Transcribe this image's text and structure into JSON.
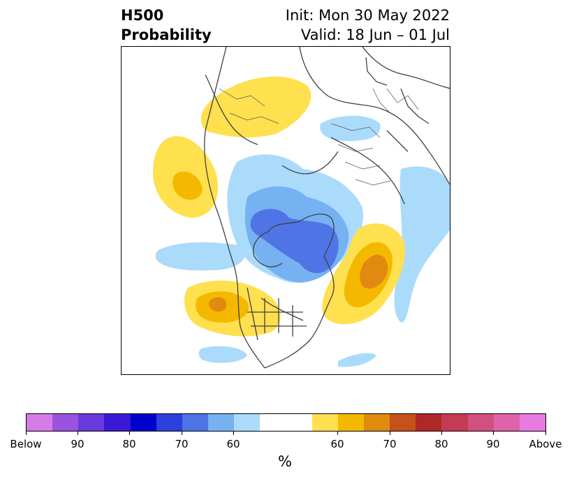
{
  "title": {
    "left_line1": "H500",
    "left_line2": "Probability",
    "right_line1": "Init: Mon 30 May 2022",
    "right_line2": "Valid: 18 Jun – 01 Jul"
  },
  "colorbar": {
    "unit": "%",
    "segments": [
      {
        "color": "#d67be8"
      },
      {
        "color": "#9a52e0"
      },
      {
        "color": "#6a3adc"
      },
      {
        "color": "#3b18d6"
      },
      {
        "color": "#0000cc"
      },
      {
        "color": "#2d3fdd"
      },
      {
        "color": "#4e74e6"
      },
      {
        "color": "#76b1f2"
      },
      {
        "color": "#aadbfb"
      },
      {
        "color": "#ffffff",
        "wide": true
      },
      {
        "color": "#ffe04f"
      },
      {
        "color": "#f5b800"
      },
      {
        "color": "#e08a10"
      },
      {
        "color": "#c4521a"
      },
      {
        "color": "#b02727"
      },
      {
        "color": "#c53a55"
      },
      {
        "color": "#d24f7e"
      },
      {
        "color": "#de63ab"
      },
      {
        "color": "#e87be0"
      }
    ],
    "tick_labels": [
      "Below",
      "90",
      "80",
      "70",
      "60",
      "60",
      "70",
      "80",
      "90",
      "Above"
    ]
  }
}
